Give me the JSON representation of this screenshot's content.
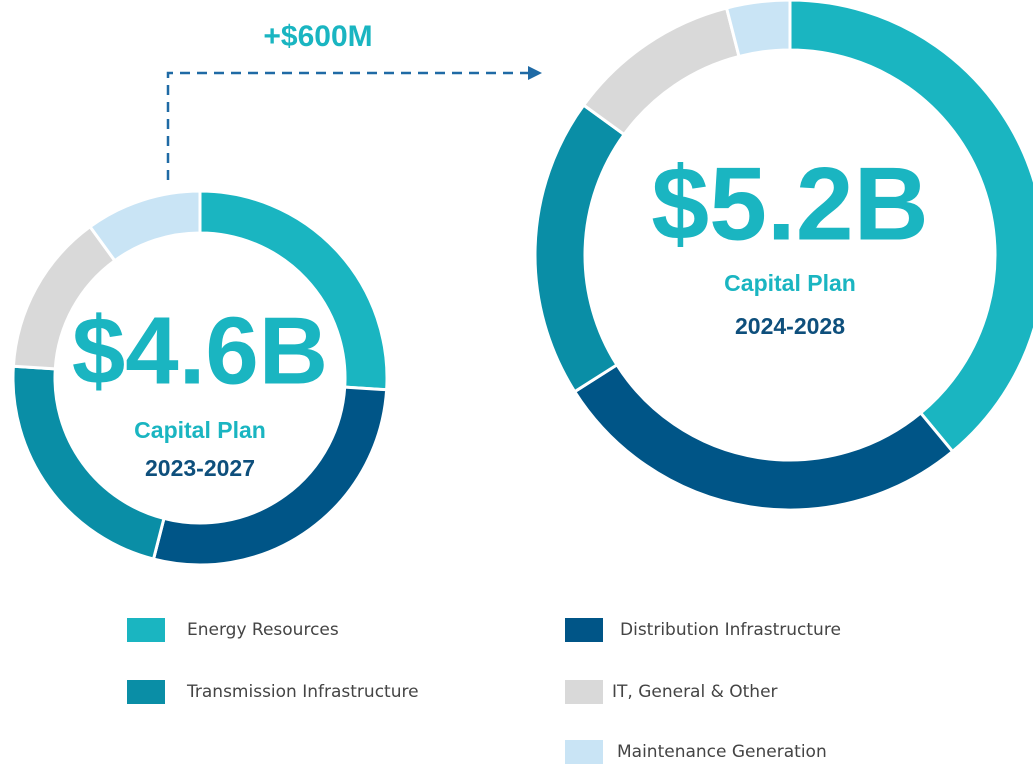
{
  "annotation": "+$600M",
  "chart_data": [
    {
      "type": "donut",
      "title": "$4.6B",
      "subtitle": "Capital Plan",
      "period": "2023-2027",
      "categories": [
        "Energy Resources",
        "Distribution Infrastructure",
        "Transmission Infrastructure",
        "IT, General & Other",
        "Maintenance Generation"
      ],
      "values": [
        26,
        28,
        22,
        14,
        10
      ],
      "colors": [
        "#1ab5c1",
        "#005587",
        "#0a8ea6",
        "#d9d9d9",
        "#c9e4f5"
      ]
    },
    {
      "type": "donut",
      "title": "$5.2B",
      "subtitle": "Capital Plan",
      "period": "2024-2028",
      "categories": [
        "Energy Resources",
        "Distribution Infrastructure",
        "Transmission Infrastructure",
        "IT, General & Other",
        "Maintenance Generation"
      ],
      "values": [
        39,
        27,
        19,
        11,
        4
      ],
      "colors": [
        "#1ab5c1",
        "#005587",
        "#0a8ea6",
        "#d9d9d9",
        "#c9e4f5"
      ]
    }
  ]
}
